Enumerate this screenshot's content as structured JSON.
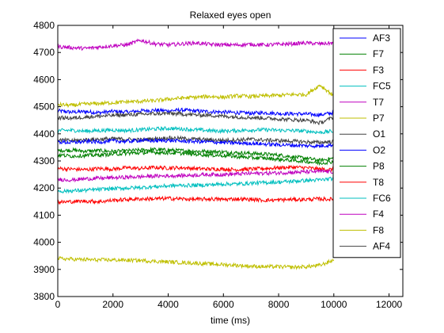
{
  "chart_data": {
    "type": "line",
    "title": "Relaxed eyes open",
    "xlabel": "time (ms)",
    "ylabel": "",
    "xlim": [
      0,
      12500
    ],
    "ylim": [
      3800,
      4800
    ],
    "xticks": [
      0,
      2000,
      4000,
      6000,
      8000,
      10000,
      12000
    ],
    "yticks": [
      3800,
      3900,
      4000,
      4100,
      4200,
      4300,
      4400,
      4500,
      4600,
      4700,
      4800
    ],
    "xtick_labels": [
      "0",
      "2000",
      "4000",
      "6000",
      "8000",
      "10000",
      "12000"
    ],
    "ytick_labels": [
      "3800",
      "3900",
      "4000",
      "4100",
      "4200",
      "4300",
      "4400",
      "4500",
      "4600",
      "4700",
      "4800"
    ],
    "grid": false,
    "legend_position": "top-right",
    "x": [
      0,
      500,
      1000,
      1500,
      2000,
      2500,
      3000,
      3500,
      4000,
      4500,
      5000,
      5500,
      6000,
      6500,
      7000,
      7500,
      8000,
      8500,
      9000,
      9500,
      10000
    ],
    "series": [
      {
        "name": "AF3",
        "color": "#0000ff",
        "values": [
          4485,
          4480,
          4482,
          4478,
          4483,
          4480,
          4485,
          4487,
          4485,
          4488,
          4484,
          4482,
          4480,
          4478,
          4476,
          4478,
          4475,
          4474,
          4473,
          4470,
          4478
        ]
      },
      {
        "name": "F7",
        "color": "#008000",
        "values": [
          4338,
          4340,
          4336,
          4338,
          4335,
          4337,
          4340,
          4342,
          4340,
          4338,
          4336,
          4335,
          4333,
          4330,
          4328,
          4325,
          4322,
          4315,
          4310,
          4302,
          4310
        ]
      },
      {
        "name": "F3",
        "color": "#ff0000",
        "values": [
          4272,
          4270,
          4268,
          4272,
          4270,
          4275,
          4272,
          4276,
          4274,
          4275,
          4272,
          4270,
          4270,
          4268,
          4270,
          4272,
          4275,
          4277,
          4275,
          4270,
          4268
        ]
      },
      {
        "name": "FC5",
        "color": "#00bfbf",
        "values": [
          4412,
          4413,
          4410,
          4412,
          4414,
          4412,
          4415,
          4418,
          4420,
          4418,
          4415,
          4412,
          4410,
          4412,
          4414,
          4415,
          4413,
          4412,
          4410,
          4405,
          4410
        ]
      },
      {
        "name": "T7",
        "color": "#bf00bf",
        "values": [
          4722,
          4718,
          4715,
          4720,
          4725,
          4728,
          4745,
          4732,
          4728,
          4732,
          4735,
          4730,
          4728,
          4728,
          4730,
          4728,
          4730,
          4732,
          4735,
          4732,
          4735
        ]
      },
      {
        "name": "P7",
        "color": "#bfbf00",
        "values": [
          4508,
          4505,
          4510,
          4512,
          4515,
          4518,
          4520,
          4522,
          4528,
          4532,
          4535,
          4538,
          4535,
          4540,
          4538,
          4540,
          4542,
          4545,
          4545,
          4580,
          4540
        ]
      },
      {
        "name": "O1",
        "color": "#404040",
        "values": [
          4378,
          4375,
          4378,
          4380,
          4382,
          4380,
          4378,
          4382,
          4385,
          4383,
          4380,
          4378,
          4376,
          4378,
          4380,
          4377,
          4375,
          4373,
          4370,
          4368,
          4372
        ]
      },
      {
        "name": "O2",
        "color": "#0000ff",
        "values": [
          4370,
          4368,
          4372,
          4370,
          4374,
          4372,
          4376,
          4374,
          4376,
          4373,
          4372,
          4370,
          4368,
          4366,
          4365,
          4362,
          4360,
          4358,
          4356,
          4355,
          4360
        ]
      },
      {
        "name": "P8",
        "color": "#008000",
        "values": [
          4322,
          4318,
          4320,
          4322,
          4325,
          4328,
          4330,
          4332,
          4330,
          4328,
          4325,
          4322,
          4320,
          4316,
          4312,
          4310,
          4306,
          4302,
          4298,
          4292,
          4298
        ]
      },
      {
        "name": "T8",
        "color": "#ff0000",
        "values": [
          4148,
          4150,
          4152,
          4150,
          4155,
          4158,
          4160,
          4160,
          4162,
          4160,
          4158,
          4160,
          4158,
          4160,
          4158,
          4155,
          4156,
          4158,
          4158,
          4160,
          4158
        ]
      },
      {
        "name": "FC6",
        "color": "#00bfbf",
        "values": [
          4188,
          4190,
          4192,
          4195,
          4198,
          4200,
          4202,
          4205,
          4208,
          4210,
          4210,
          4212,
          4215,
          4215,
          4218,
          4220,
          4222,
          4225,
          4228,
          4230,
          4235
        ]
      },
      {
        "name": "F4",
        "color": "#bf00bf",
        "values": [
          4232,
          4230,
          4234,
          4236,
          4238,
          4240,
          4242,
          4244,
          4245,
          4246,
          4248,
          4250,
          4250,
          4252,
          4254,
          4255,
          4256,
          4258,
          4260,
          4262,
          4260
        ]
      },
      {
        "name": "F8",
        "color": "#bfbf00",
        "values": [
          3940,
          3938,
          3936,
          3935,
          3935,
          3934,
          3933,
          3930,
          3928,
          3925,
          3923,
          3920,
          3918,
          3915,
          3912,
          3910,
          3910,
          3908,
          3910,
          3915,
          3935
        ]
      },
      {
        "name": "AF4",
        "color": "#404040",
        "values": [
          4460,
          4458,
          4462,
          4465,
          4468,
          4470,
          4472,
          4474,
          4475,
          4473,
          4470,
          4468,
          4465,
          4462,
          4460,
          4458,
          4455,
          4452,
          4450,
          4440,
          4462
        ]
      }
    ]
  }
}
